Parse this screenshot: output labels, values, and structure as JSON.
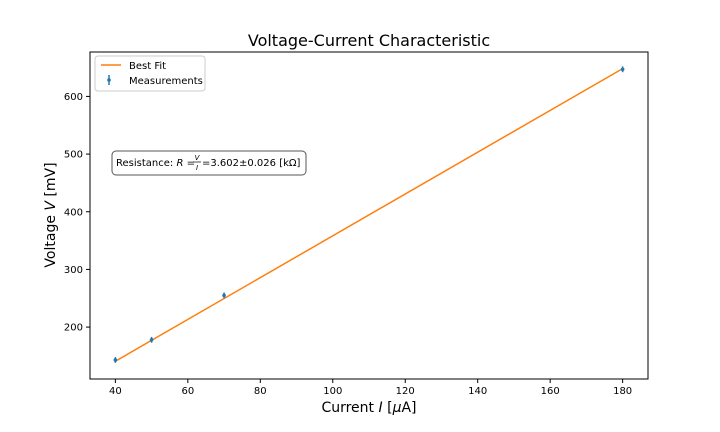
{
  "chart_data": {
    "type": "scatter",
    "title": "Voltage-Current Characteristic",
    "xlabel": {
      "prefix": "Current ",
      "var": "I",
      "unit_open": " [",
      "mu": "μ",
      "unit_rest": "A]"
    },
    "ylabel": {
      "prefix": "Voltage ",
      "var": "V",
      "unit": " [mV]"
    },
    "xlim": [
      33,
      187
    ],
    "ylim": [
      110,
      677
    ],
    "xticks": [
      40,
      60,
      80,
      100,
      120,
      140,
      160,
      180
    ],
    "yticks": [
      200,
      300,
      400,
      500,
      600
    ],
    "series": [
      {
        "name": "Measurements",
        "kind": "errorbar",
        "color": "#1f77b4",
        "x": [
          40,
          50,
          70,
          180
        ],
        "y": [
          143,
          178,
          255,
          647
        ],
        "yerr": [
          5,
          5,
          5,
          5
        ]
      },
      {
        "name": "Best Fit",
        "kind": "line",
        "color": "#ff7f0e",
        "x": [
          40,
          180
        ],
        "y": [
          140.8,
          648.2
        ]
      }
    ],
    "legend": {
      "position": "top-left",
      "entries": [
        "Best Fit",
        "Measurements"
      ]
    },
    "annotation": {
      "lead": "Resistance: ",
      "r_var": "R",
      "eq": " = ",
      "frac_num": "V",
      "frac_den": "I",
      "value": " =3.602±0.026 [kΩ]"
    },
    "grid": false
  }
}
